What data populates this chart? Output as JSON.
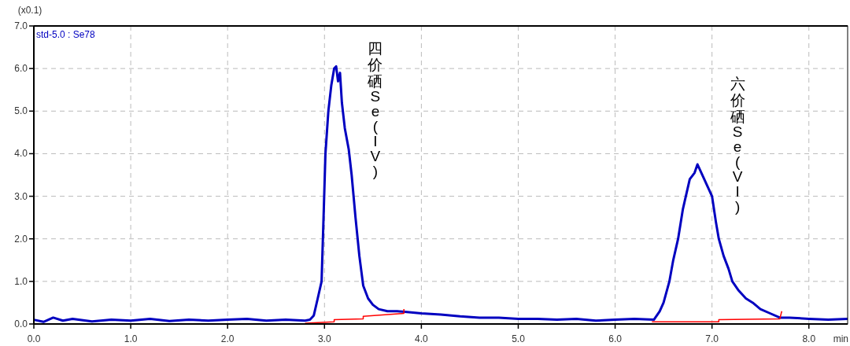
{
  "chart_data": {
    "type": "line",
    "ylabel": "(x0.1)",
    "xlabel": "min",
    "xlim": [
      0,
      8.4
    ],
    "ylim": [
      0,
      7
    ],
    "xticks": [
      {
        "value": 0,
        "label": "0.0"
      },
      {
        "value": 1,
        "label": "1.0"
      },
      {
        "value": 2,
        "label": "2.0"
      },
      {
        "value": 3,
        "label": "3.0"
      },
      {
        "value": 4,
        "label": "4.0"
      },
      {
        "value": 5,
        "label": "5.0"
      },
      {
        "value": 6,
        "label": "6.0"
      },
      {
        "value": 7,
        "label": "7.0"
      },
      {
        "value": 8,
        "label": "8.0"
      }
    ],
    "yticks": [
      {
        "value": 0,
        "label": "0.0"
      },
      {
        "value": 1,
        "label": "1.0"
      },
      {
        "value": 2,
        "label": "2.0"
      },
      {
        "value": 3,
        "label": "3.0"
      },
      {
        "value": 4,
        "label": "4.0"
      },
      {
        "value": 5,
        "label": "5.0"
      },
      {
        "value": 6,
        "label": "6.0"
      },
      {
        "value": 7,
        "label": "7.0"
      }
    ],
    "grid": true,
    "series": [
      {
        "name": "std-5.0 : Se78",
        "color": "#0000c0",
        "x": [
          0,
          0.1,
          0.2,
          0.3,
          0.4,
          0.6,
          0.8,
          1.0,
          1.2,
          1.4,
          1.6,
          1.8,
          2.0,
          2.2,
          2.4,
          2.6,
          2.8,
          2.85,
          2.89,
          2.93,
          2.97,
          2.99,
          3.01,
          3.04,
          3.07,
          3.1,
          3.12,
          3.14,
          3.16,
          3.18,
          3.21,
          3.25,
          3.28,
          3.32,
          3.36,
          3.4,
          3.45,
          3.5,
          3.56,
          3.65,
          3.75,
          3.85,
          4.0,
          4.2,
          4.4,
          4.6,
          4.8,
          5.0,
          5.2,
          5.4,
          5.6,
          5.8,
          6.0,
          6.2,
          6.4,
          6.46,
          6.5,
          6.56,
          6.6,
          6.65,
          6.7,
          6.73,
          6.77,
          6.82,
          6.85,
          6.88,
          6.92,
          6.96,
          7.0,
          7.04,
          7.07,
          7.12,
          7.17,
          7.21,
          7.27,
          7.35,
          7.42,
          7.5,
          7.6,
          7.7,
          7.8,
          8.0,
          8.2,
          8.4
        ],
        "values": [
          0.1,
          0.05,
          0.15,
          0.08,
          0.12,
          0.06,
          0.1,
          0.08,
          0.12,
          0.07,
          0.1,
          0.08,
          0.1,
          0.12,
          0.08,
          0.1,
          0.08,
          0.1,
          0.2,
          0.6,
          1.0,
          2.5,
          4.0,
          5.0,
          5.6,
          6.0,
          6.05,
          5.7,
          5.9,
          5.2,
          4.6,
          4.1,
          3.5,
          2.5,
          1.6,
          0.9,
          0.6,
          0.45,
          0.35,
          0.3,
          0.3,
          0.28,
          0.25,
          0.22,
          0.18,
          0.15,
          0.15,
          0.12,
          0.12,
          0.1,
          0.12,
          0.08,
          0.1,
          0.12,
          0.1,
          0.3,
          0.5,
          1.0,
          1.5,
          2.0,
          2.7,
          3.0,
          3.4,
          3.55,
          3.75,
          3.6,
          3.4,
          3.2,
          3.0,
          2.4,
          2.0,
          1.6,
          1.3,
          1.0,
          0.8,
          0.6,
          0.5,
          0.35,
          0.25,
          0.15,
          0.15,
          0.12,
          0.1,
          0.12
        ]
      },
      {
        "color": "#ff0000",
        "x": [
          2.8,
          3.1,
          3.1,
          3.4,
          3.4,
          3.82,
          3.82
        ],
        "values": [
          0.02,
          0.05,
          0.1,
          0.12,
          0.18,
          0.25,
          0.35
        ]
      },
      {
        "color": "#ff0000",
        "x": [
          6.38,
          7.07,
          7.07,
          7.7,
          7.72
        ],
        "values": [
          0.05,
          0.05,
          0.1,
          0.12,
          0.3
        ]
      }
    ],
    "annotations": [
      "四价硒Se(IV)",
      "六价硒Se(VI)"
    ]
  }
}
